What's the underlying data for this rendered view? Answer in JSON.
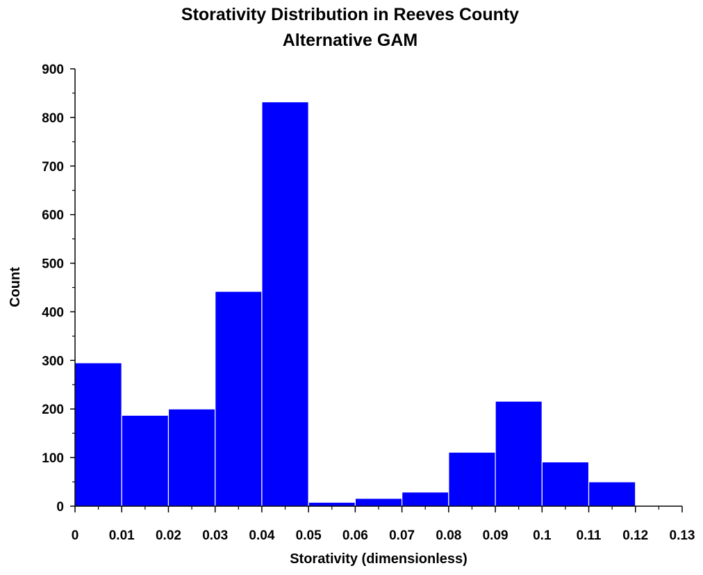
{
  "chart_data": {
    "type": "bar",
    "title": "Storativity Distribution in Reeves County",
    "subtitle": "Alternative GAM",
    "xlabel": "Storativity (dimensionless)",
    "ylabel": "Count",
    "xlim": [
      0,
      0.13
    ],
    "ylim": [
      0,
      900
    ],
    "x_ticks": [
      "0",
      "0.01",
      "0.02",
      "0.03",
      "0.04",
      "0.05",
      "0.06",
      "0.07",
      "0.08",
      "0.09",
      "0.1",
      "0.11",
      "0.12",
      "0.13"
    ],
    "y_ticks": [
      "0",
      "100",
      "200",
      "300",
      "400",
      "500",
      "600",
      "700",
      "800",
      "900"
    ],
    "bin_width": 0.01,
    "bins": [
      {
        "start": 0.0,
        "end": 0.01,
        "count": 295
      },
      {
        "start": 0.01,
        "end": 0.02,
        "count": 187
      },
      {
        "start": 0.02,
        "end": 0.03,
        "count": 200
      },
      {
        "start": 0.03,
        "end": 0.04,
        "count": 442
      },
      {
        "start": 0.04,
        "end": 0.05,
        "count": 832
      },
      {
        "start": 0.05,
        "end": 0.06,
        "count": 8
      },
      {
        "start": 0.06,
        "end": 0.07,
        "count": 16
      },
      {
        "start": 0.07,
        "end": 0.08,
        "count": 29
      },
      {
        "start": 0.08,
        "end": 0.09,
        "count": 111
      },
      {
        "start": 0.09,
        "end": 0.1,
        "count": 216
      },
      {
        "start": 0.1,
        "end": 0.11,
        "count": 91
      },
      {
        "start": 0.11,
        "end": 0.12,
        "count": 50
      }
    ],
    "grid": false,
    "legend": "none",
    "bar_color": "#0000FF",
    "bar_edge_color": "#FFFFFF"
  }
}
